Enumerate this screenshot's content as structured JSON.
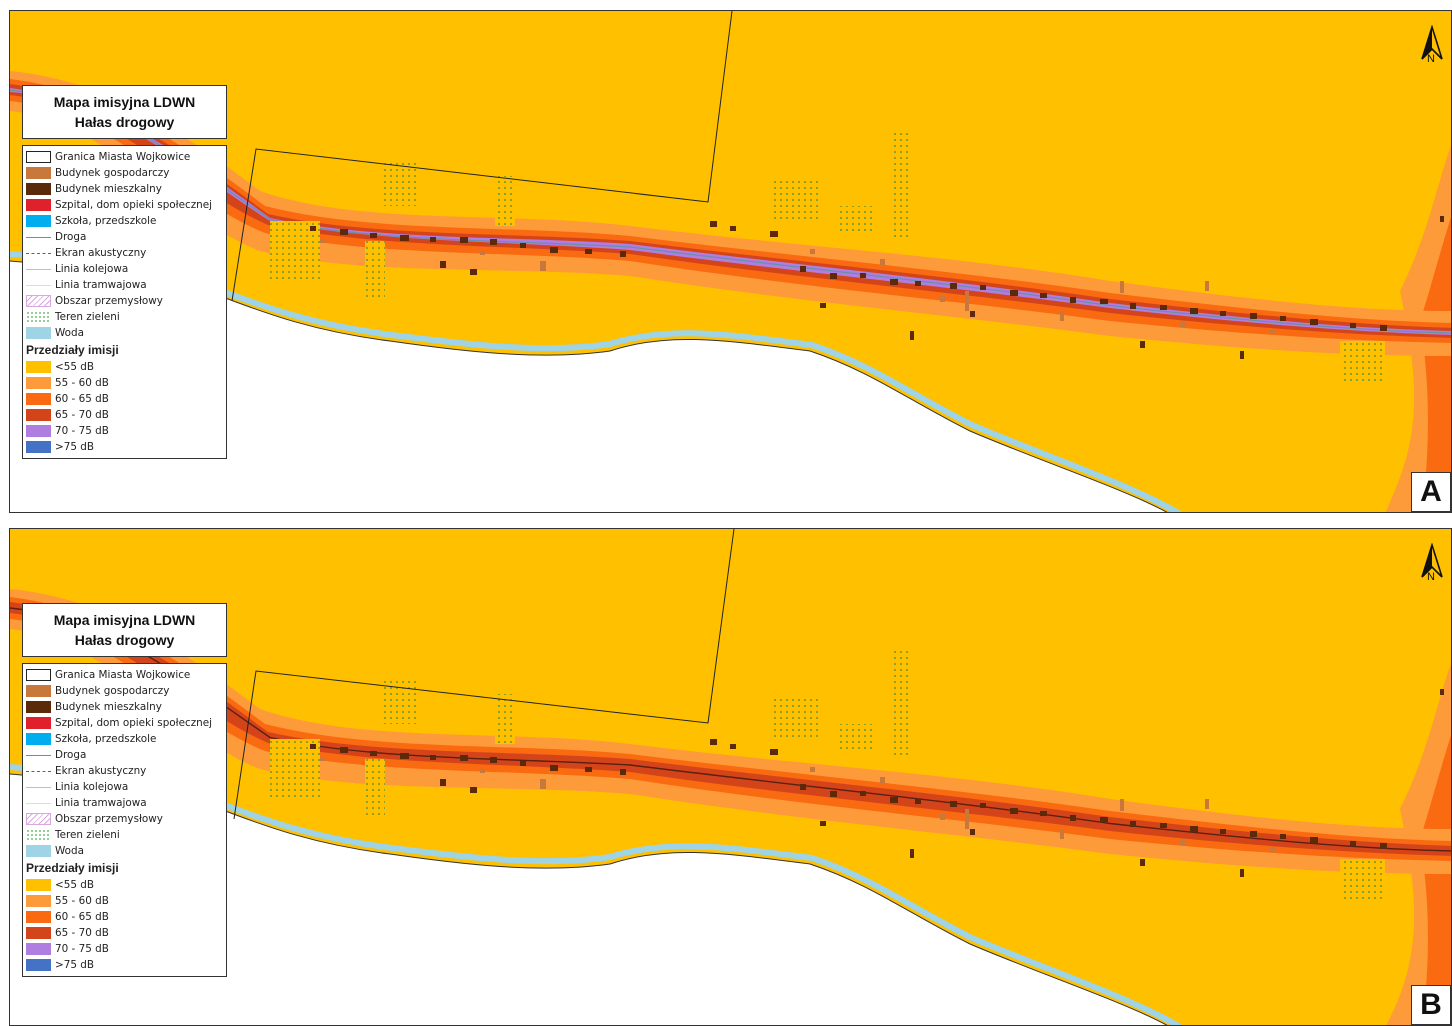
{
  "panels": [
    {
      "id": "A",
      "label": "A",
      "title_line1": "Mapa imisyjna LDWN",
      "title_line2": "Hałas drogowy",
      "north": "N",
      "road_core_level": "70 - 75 dB"
    },
    {
      "id": "B",
      "label": "B",
      "title_line1": "Mapa imisyjna LDWN",
      "title_line2": "Hałas drogowy",
      "north": "N",
      "road_core_level": "65 - 70 dB"
    }
  ],
  "legend": {
    "features": [
      {
        "label": "Granica Miasta Wojkowice",
        "symbol": "outline-box",
        "color": "#ffffff"
      },
      {
        "label": "Budynek gospodarczy",
        "symbol": "fill",
        "color": "#c8783a"
      },
      {
        "label": "Budynek mieszkalny",
        "symbol": "fill",
        "color": "#5a2a0a"
      },
      {
        "label": "Szpital, dom opieki społecznej",
        "symbol": "fill",
        "color": "#e0202a"
      },
      {
        "label": "Szkoła, przedszkole",
        "symbol": "fill",
        "color": "#00aeef"
      },
      {
        "label": "Droga",
        "symbol": "line-road",
        "color": "#6a8fa8"
      },
      {
        "label": "Ekran akustyczny",
        "symbol": "line-screen",
        "color": "#2c8a2c"
      },
      {
        "label": "Linia kolejowa",
        "symbol": "line-rail",
        "color": "#bfbfbf"
      },
      {
        "label": "Linia tramwajowa",
        "symbol": "line-tram",
        "color": "#f3cfe3"
      },
      {
        "label": "Obszar przemysłowy",
        "symbol": "hatch",
        "color": "#d9a8e0"
      },
      {
        "label": "Teren zieleni",
        "symbol": "dots",
        "color": "#6fbf6f"
      },
      {
        "label": "Woda",
        "symbol": "fill",
        "color": "#9fd3e6"
      }
    ],
    "ranges_title": "Przedziały imisji",
    "ranges": [
      {
        "label": "<55 dB",
        "color": "#ffc000"
      },
      {
        "label": "55 - 60 dB",
        "color": "#fd9a3a"
      },
      {
        "label": "60 - 65 dB",
        "color": "#fa6a10"
      },
      {
        "label": "65 - 70 dB",
        "color": "#d4441a"
      },
      {
        "label": "70 - 75 dB",
        "color": "#b07ee0"
      },
      {
        "label": ">75 dB",
        "color": "#4472c4"
      }
    ]
  }
}
